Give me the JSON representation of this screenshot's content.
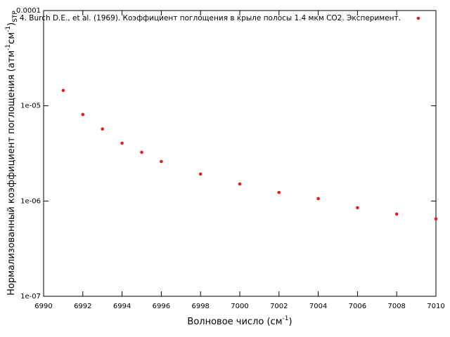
{
  "chart_data": {
    "type": "scatter",
    "xlabel": [
      "Волновое число (см",
      "-1",
      ")"
    ],
    "ylabel": [
      "Нормализованный коэффициент поглощения (атм",
      "-1",
      "см",
      "-1",
      ")",
      "STP"
    ],
    "x": [
      6991,
      6992,
      6993,
      6994,
      6995,
      6996,
      6998,
      7000,
      7002,
      7004,
      7006,
      7008,
      7010
    ],
    "series": [
      {
        "name": "4. Burch D.E., et al. (1969). Коэффициент поглощения в крыле полосы 1.4 мкм CO2. Эксперимент.",
        "color": "#dd2020",
        "values": [
          1.45e-05,
          8.1e-06,
          5.7e-06,
          4.05e-06,
          3.25e-06,
          2.6e-06,
          1.92e-06,
          1.51e-06,
          1.23e-06,
          1.06e-06,
          8.5e-07,
          7.3e-07,
          6.5e-07
        ]
      }
    ],
    "xlim": [
      6990,
      7010
    ],
    "xticks": [
      6990,
      6992,
      6994,
      6996,
      6998,
      7000,
      7002,
      7004,
      7006,
      7008,
      7010
    ],
    "ylim": [
      1e-07,
      0.0001
    ],
    "yticks": [
      {
        "value": 1e-07,
        "label": "1e-07"
      },
      {
        "value": 1e-06,
        "label": "1e-06"
      },
      {
        "value": 1e-05,
        "label": "1e-05"
      },
      0.0001
    ],
    "log_y": true,
    "legend": "top-right"
  }
}
